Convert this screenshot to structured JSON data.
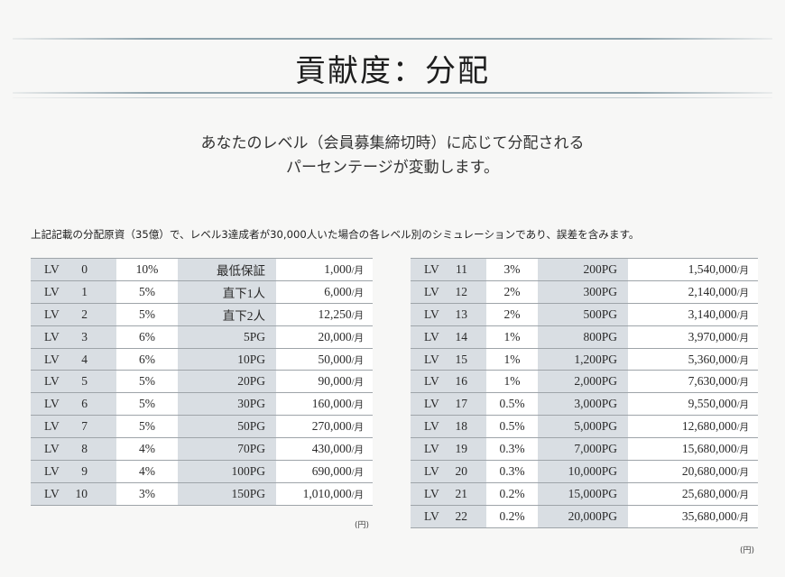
{
  "title": "貢献度：分配",
  "subtitle_line1": "あなたのレベル（会員募集締切時）に応じて分配される",
  "subtitle_line2": "パーセンテージが変動します。",
  "note": "上記記載の分配原資（35億）で、レベル3達成者が30,000人いた場合の各レベル別のシミュレーションであり、誤差を含みます。",
  "unit_label": "(円)",
  "amount_suffix": "/月",
  "left_levels": [
    {
      "lv": "LV",
      "num": "0",
      "pct": "10%",
      "cond": "最低保証",
      "amt": "1,000"
    },
    {
      "lv": "LV",
      "num": "1",
      "pct": "5%",
      "cond": "直下1人",
      "amt": "6,000"
    },
    {
      "lv": "LV",
      "num": "2",
      "pct": "5%",
      "cond": "直下2人",
      "amt": "12,250"
    },
    {
      "lv": "LV",
      "num": "3",
      "pct": "6%",
      "cond": "5PG",
      "amt": "20,000"
    },
    {
      "lv": "LV",
      "num": "4",
      "pct": "6%",
      "cond": "10PG",
      "amt": "50,000"
    },
    {
      "lv": "LV",
      "num": "5",
      "pct": "5%",
      "cond": "20PG",
      "amt": "90,000"
    },
    {
      "lv": "LV",
      "num": "6",
      "pct": "5%",
      "cond": "30PG",
      "amt": "160,000"
    },
    {
      "lv": "LV",
      "num": "7",
      "pct": "5%",
      "cond": "50PG",
      "amt": "270,000"
    },
    {
      "lv": "LV",
      "num": "8",
      "pct": "4%",
      "cond": "70PG",
      "amt": "430,000"
    },
    {
      "lv": "LV",
      "num": "9",
      "pct": "4%",
      "cond": "100PG",
      "amt": "690,000"
    },
    {
      "lv": "LV",
      "num": "10",
      "pct": "3%",
      "cond": "150PG",
      "amt": "1,010,000"
    }
  ],
  "right_levels": [
    {
      "lv": "LV",
      "num": "11",
      "pct": "3%",
      "cond": "200PG",
      "amt": "1,540,000"
    },
    {
      "lv": "LV",
      "num": "12",
      "pct": "2%",
      "cond": "300PG",
      "amt": "2,140,000"
    },
    {
      "lv": "LV",
      "num": "13",
      "pct": "2%",
      "cond": "500PG",
      "amt": "3,140,000"
    },
    {
      "lv": "LV",
      "num": "14",
      "pct": "1%",
      "cond": "800PG",
      "amt": "3,970,000"
    },
    {
      "lv": "LV",
      "num": "15",
      "pct": "1%",
      "cond": "1,200PG",
      "amt": "5,360,000"
    },
    {
      "lv": "LV",
      "num": "16",
      "pct": "1%",
      "cond": "2,000PG",
      "amt": "7,630,000"
    },
    {
      "lv": "LV",
      "num": "17",
      "pct": "0.5%",
      "cond": "3,000PG",
      "amt": "9,550,000"
    },
    {
      "lv": "LV",
      "num": "18",
      "pct": "0.5%",
      "cond": "5,000PG",
      "amt": "12,680,000"
    },
    {
      "lv": "LV",
      "num": "19",
      "pct": "0.3%",
      "cond": "7,000PG",
      "amt": "15,680,000"
    },
    {
      "lv": "LV",
      "num": "20",
      "pct": "0.3%",
      "cond": "10,000PG",
      "amt": "20,680,000"
    },
    {
      "lv": "LV",
      "num": "21",
      "pct": "0.2%",
      "cond": "15,000PG",
      "amt": "25,680,000"
    },
    {
      "lv": "LV",
      "num": "22",
      "pct": "0.2%",
      "cond": "20,000PG",
      "amt": "35,680,000"
    }
  ],
  "colors": {
    "level_cell_bg": "#d9dee3",
    "title_rule": "#8fa3ad",
    "page_bg": "#f7f7f6"
  }
}
